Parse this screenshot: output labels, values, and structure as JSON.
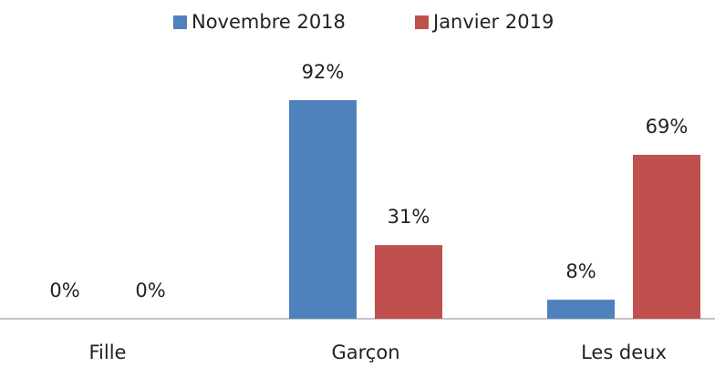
{
  "chart_data": {
    "type": "bar",
    "categories": [
      "Fille",
      "Garçon",
      "Les deux"
    ],
    "series": [
      {
        "name": "Novembre 2018",
        "color": "#4f81bd",
        "values": [
          0,
          92,
          8
        ],
        "value_labels": [
          "0%",
          "92%",
          "8%"
        ]
      },
      {
        "name": "Janvier 2019",
        "color": "#c0504d",
        "values": [
          0,
          31,
          69
        ],
        "value_labels": [
          "0%",
          "31%",
          "69%"
        ]
      }
    ],
    "legend": "top"
  }
}
